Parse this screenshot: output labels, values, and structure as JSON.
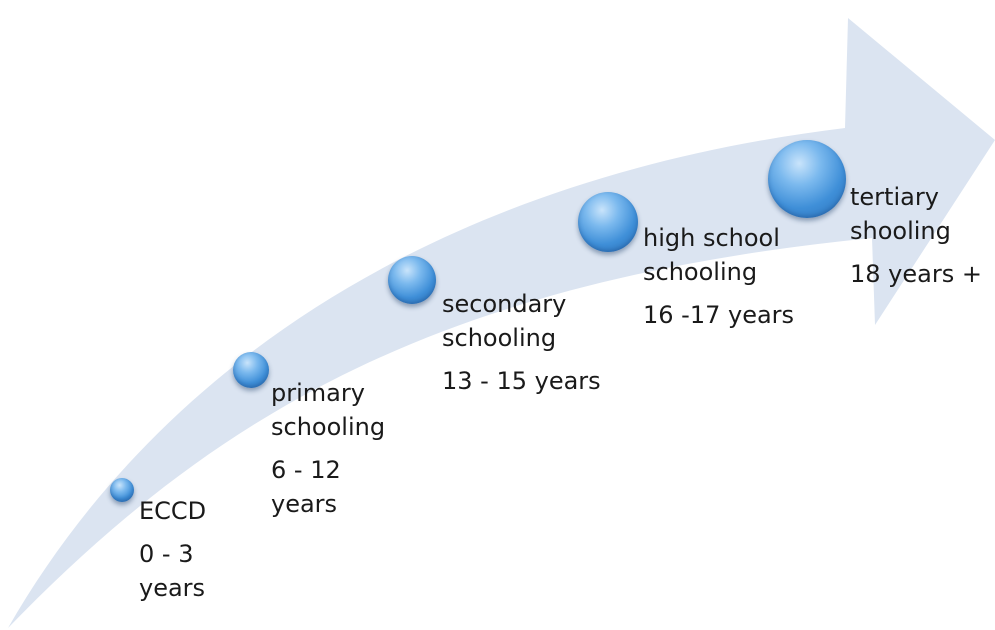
{
  "colors": {
    "arrow_fill": "#dbe4f1",
    "bubble": "#3f8fd8"
  },
  "stages": [
    {
      "name": "ECCD",
      "age": "0 - 3\nyears"
    },
    {
      "name": "primary\nschooling",
      "age": "6 - 12\nyears"
    },
    {
      "name": "secondary\nschooling",
      "age": "13 - 15 years"
    },
    {
      "name": "high school\nschooling",
      "age": "16 -17 years"
    },
    {
      "name": "tertiary\nshooling",
      "age": "18 years +"
    }
  ]
}
